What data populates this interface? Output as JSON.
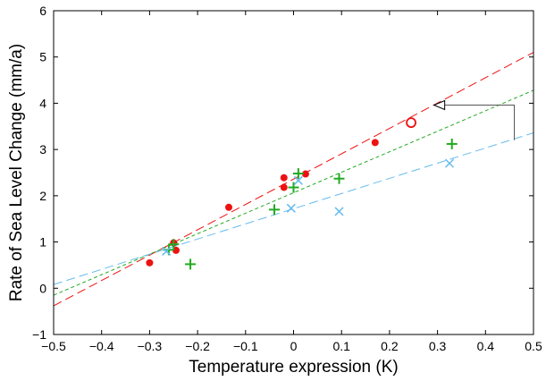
{
  "chart_data": {
    "type": "scatter",
    "title": "",
    "xlabel": "Temperature expression (K)",
    "ylabel": "Rate of Sea Level Change (mm/a)",
    "xlim": [
      -0.5,
      0.5
    ],
    "ylim": [
      -1,
      6
    ],
    "x_ticks": [
      -0.5,
      -0.4,
      -0.3,
      -0.2,
      -0.1,
      0,
      0.1,
      0.2,
      0.3,
      0.4,
      0.5
    ],
    "y_ticks": [
      -1,
      0,
      1,
      2,
      3,
      4,
      5,
      6
    ],
    "x_tick_labels": [
      "−0.5",
      "−0.4",
      "−0.3",
      "−0.2",
      "−0.1",
      "0",
      "0.1",
      "0.2",
      "0.3",
      "0.4",
      "0.5"
    ],
    "y_tick_labels": [
      "−1",
      "0",
      "1",
      "2",
      "3",
      "4",
      "5",
      "6"
    ],
    "grid": false,
    "legend": "none",
    "series": [
      {
        "marker": "dot",
        "color": "#ee1111",
        "points": [
          {
            "x": -0.3,
            "y": 0.55
          },
          {
            "x": -0.25,
            "y": 0.98
          },
          {
            "x": -0.245,
            "y": 0.82
          },
          {
            "x": -0.135,
            "y": 1.75
          },
          {
            "x": -0.02,
            "y": 2.18
          },
          {
            "x": -0.02,
            "y": 2.39
          },
          {
            "x": 0.025,
            "y": 2.47
          },
          {
            "x": 0.17,
            "y": 3.15
          }
        ],
        "trend": {
          "x": [
            -0.5,
            0.5
          ],
          "y": [
            -0.38,
            5.1
          ]
        },
        "trend_style": "long-dash"
      },
      {
        "marker": "plus",
        "color": "#22aa22",
        "points": [
          {
            "x": -0.26,
            "y": 0.83
          },
          {
            "x": -0.25,
            "y": 0.95
          },
          {
            "x": -0.215,
            "y": 0.52
          },
          {
            "x": -0.04,
            "y": 1.7
          },
          {
            "x": 0.0,
            "y": 2.18
          },
          {
            "x": 0.01,
            "y": 2.48
          },
          {
            "x": 0.095,
            "y": 2.37
          },
          {
            "x": 0.33,
            "y": 3.12
          }
        ],
        "trend": {
          "x": [
            -0.5,
            0.5
          ],
          "y": [
            -0.15,
            4.28
          ]
        },
        "trend_style": "short-dash"
      },
      {
        "marker": "cross",
        "color": "#66bbee",
        "points": [
          {
            "x": -0.265,
            "y": 0.8
          },
          {
            "x": -0.005,
            "y": 1.73
          },
          {
            "x": 0.01,
            "y": 2.33
          },
          {
            "x": 0.095,
            "y": 1.66
          },
          {
            "x": 0.325,
            "y": 2.7
          }
        ],
        "trend": {
          "x": [
            -0.5,
            0.5
          ],
          "y": [
            0.08,
            3.36
          ]
        },
        "trend_style": "long-dash"
      }
    ],
    "highlight_point": {
      "x": 0.245,
      "y": 3.58,
      "marker": "open-circle",
      "color": "#ee1111"
    },
    "annotation_arrow": {
      "points": [
        {
          "x": 0.46,
          "y": 3.2
        },
        {
          "x": 0.46,
          "y": 3.96
        },
        {
          "x": 0.315,
          "y": 3.96
        }
      ],
      "color": "#555555"
    }
  }
}
